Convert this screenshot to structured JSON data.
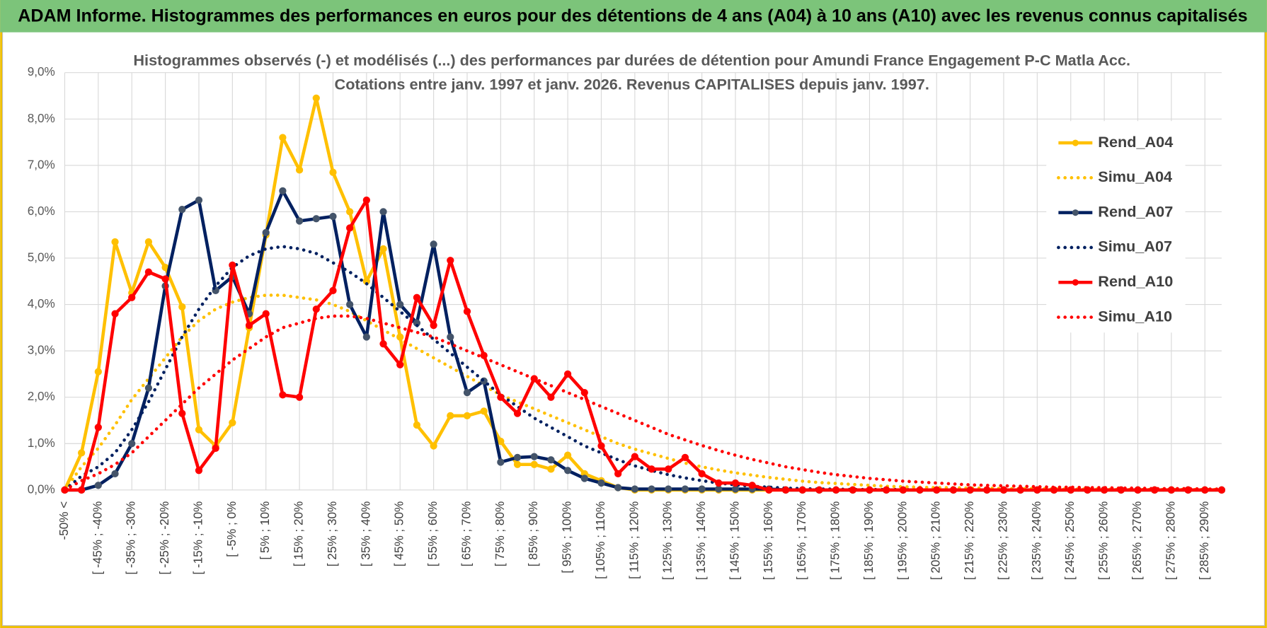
{
  "header": {
    "title": "ADAM Informe. Histogrammes des performances en euros pour des détentions de 4 ans (A04) à 10 ans (A10) avec les revenus connus capitalisés"
  },
  "chart_data": {
    "type": "line",
    "title": "Histogrammes observés (-) et modélisés (...) des performances par durées de détention pour Amundi France Engagement P-C Matla Acc.",
    "subtitle": "Cotations entre janv. 1997 et janv. 2026. Revenus CAPITALISES depuis janv. 1997.",
    "categories": [
      "-50% <",
      null,
      "[ -45% ; -40%",
      null,
      "[ -35% ; -30%",
      null,
      "[ -25% ; -20%",
      null,
      "[ -15% ; -10%",
      null,
      "[ -5% ; 0%",
      null,
      "[ 5% ; 10%",
      null,
      "[ 15% ; 20%",
      null,
      "[ 25% ; 30%",
      null,
      "[ 35% ; 40%",
      null,
      "[ 45% ; 50%",
      null,
      "[ 55% ; 60%",
      null,
      "[ 65% ; 70%",
      null,
      "[ 75% ; 80%",
      null,
      "[ 85% ; 90%",
      null,
      "[ 95% ; 100%",
      null,
      "[ 105% ; 110%",
      null,
      "[ 115% ; 120%",
      null,
      "[ 125% ; 130%",
      null,
      "[ 135% ; 140%",
      null,
      "[ 145% ; 150%",
      null,
      "[ 155% ; 160%",
      null,
      "[ 165% ; 170%",
      null,
      "[ 175% ; 180%",
      null,
      "[ 185% ; 190%",
      null,
      "[ 195% ; 200%",
      null,
      "[ 205% ; 210%",
      null,
      "[ 215% ; 220%",
      null,
      "[ 225% ; 230%",
      null,
      "[ 235% ; 240%",
      null,
      "[ 245% ; 250%",
      null,
      "[ 255% ; 260%",
      null,
      "[ 265% ; 270%",
      null,
      "[ 275% ; 280%",
      null,
      "[ 285% ; 290%",
      null
    ],
    "series": [
      {
        "name": "Rend_A04",
        "color": "#FFC000",
        "style": "solid",
        "markers": true,
        "values": [
          0,
          0.8,
          2.55,
          5.35,
          4.25,
          5.35,
          4.8,
          3.95,
          1.3,
          0.95,
          1.45,
          3.5,
          5.5,
          7.6,
          6.9,
          8.45,
          6.85,
          6.0,
          4.5,
          5.2,
          3.3,
          1.4,
          0.95,
          1.6,
          1.6,
          1.7,
          1.05,
          0.55,
          0.55,
          0.45,
          0.75,
          0.35,
          0.2,
          0.05,
          0,
          0,
          0,
          0,
          0,
          0,
          0,
          0,
          0,
          0,
          0,
          0,
          0,
          0,
          0,
          0,
          0,
          0,
          0,
          0,
          0,
          0,
          0,
          0,
          0,
          0,
          0,
          0,
          0,
          0,
          0,
          0,
          0,
          0,
          0,
          0
        ]
      },
      {
        "name": "Simu_A04",
        "color": "#FFC000",
        "style": "dotted",
        "markers": false,
        "values": [
          0,
          0.5,
          0.9,
          1.4,
          1.95,
          2.4,
          2.85,
          3.3,
          3.65,
          3.9,
          4.05,
          4.15,
          4.2,
          4.2,
          4.15,
          4.1,
          4.0,
          3.85,
          3.65,
          3.45,
          3.25,
          3.05,
          2.85,
          2.65,
          2.45,
          2.25,
          2.05,
          1.9,
          1.75,
          1.6,
          1.45,
          1.3,
          1.15,
          1.0,
          0.88,
          0.78,
          0.68,
          0.58,
          0.5,
          0.43,
          0.37,
          0.32,
          0.27,
          0.23,
          0.19,
          0.16,
          0.14,
          0.12,
          0.1,
          0.08,
          0.07,
          0.06,
          0.05,
          0.05,
          0.04,
          0.04,
          0.03,
          0.03,
          0.03,
          0.02,
          0.02,
          0.02,
          0.02,
          0.01,
          0.01,
          0.01,
          0.01,
          0.01,
          0.01,
          0.01
        ]
      },
      {
        "name": "Rend_A07",
        "color": "#002060",
        "marker_color": "#44546A",
        "style": "solid",
        "markers": true,
        "values": [
          0,
          0,
          0.1,
          0.35,
          1.0,
          2.2,
          4.4,
          6.05,
          6.25,
          4.3,
          4.6,
          3.8,
          5.55,
          6.45,
          5.8,
          5.85,
          5.9,
          4.0,
          3.3,
          6.0,
          4.0,
          3.6,
          5.3,
          3.3,
          2.1,
          2.35,
          0.6,
          0.7,
          0.72,
          0.65,
          0.42,
          0.25,
          0.15,
          0.05,
          0.02,
          0.02,
          0.02,
          0.02,
          0.02,
          0.02,
          0.02,
          0.02,
          0.02,
          0,
          0,
          0,
          0,
          0,
          0,
          0,
          0,
          0,
          0,
          0,
          0,
          0,
          0,
          0,
          0,
          0,
          0,
          0,
          0,
          0,
          0,
          0,
          0,
          0,
          0,
          0
        ]
      },
      {
        "name": "Simu_A07",
        "color": "#002060",
        "style": "dotted",
        "markers": false,
        "values": [
          0,
          0.3,
          0.5,
          0.8,
          1.3,
          1.9,
          2.6,
          3.3,
          3.9,
          4.4,
          4.8,
          5.05,
          5.2,
          5.25,
          5.2,
          5.1,
          4.9,
          4.7,
          4.45,
          4.15,
          3.85,
          3.55,
          3.25,
          2.95,
          2.65,
          2.35,
          2.05,
          1.8,
          1.55,
          1.35,
          1.15,
          0.95,
          0.8,
          0.65,
          0.52,
          0.42,
          0.33,
          0.26,
          0.2,
          0.15,
          0.11,
          0.08,
          0.06,
          0.04,
          0.03,
          0.02,
          0.02,
          0.01,
          0.01,
          0.01,
          0.01,
          0,
          0,
          0,
          0,
          0,
          0,
          0,
          0,
          0,
          0,
          0,
          0,
          0,
          0,
          0,
          0,
          0,
          0,
          0
        ]
      },
      {
        "name": "Rend_A10",
        "color": "#FF0000",
        "style": "solid",
        "markers": true,
        "values": [
          0,
          0,
          1.35,
          3.8,
          4.15,
          4.7,
          4.55,
          1.65,
          0.42,
          0.9,
          4.85,
          3.55,
          3.8,
          2.05,
          2.0,
          3.9,
          4.3,
          5.65,
          6.25,
          3.15,
          2.7,
          4.15,
          3.55,
          4.95,
          3.85,
          2.9,
          2.0,
          1.65,
          2.4,
          2.0,
          2.5,
          2.1,
          0.95,
          0.35,
          0.72,
          0.45,
          0.45,
          0.7,
          0.35,
          0.15,
          0.15,
          0.1,
          0,
          0,
          0,
          0,
          0,
          0,
          0,
          0,
          0,
          0,
          0,
          0,
          0,
          0,
          0,
          0,
          0,
          0,
          0,
          0,
          0,
          0,
          0,
          0,
          0,
          0,
          0,
          0
        ]
      },
      {
        "name": "Simu_A10",
        "color": "#FF0000",
        "style": "dotted",
        "markers": false,
        "values": [
          0,
          0.2,
          0.35,
          0.55,
          0.8,
          1.15,
          1.5,
          1.85,
          2.2,
          2.5,
          2.8,
          3.05,
          3.3,
          3.5,
          3.6,
          3.7,
          3.75,
          3.75,
          3.7,
          3.6,
          3.5,
          3.4,
          3.3,
          3.15,
          3.0,
          2.85,
          2.7,
          2.55,
          2.4,
          2.25,
          2.1,
          1.95,
          1.8,
          1.65,
          1.5,
          1.35,
          1.2,
          1.08,
          0.96,
          0.85,
          0.75,
          0.66,
          0.58,
          0.5,
          0.44,
          0.38,
          0.33,
          0.29,
          0.25,
          0.22,
          0.19,
          0.17,
          0.15,
          0.13,
          0.11,
          0.1,
          0.09,
          0.08,
          0.07,
          0.06,
          0.06,
          0.05,
          0.05,
          0.04,
          0.04,
          0.03,
          0.03,
          0.03,
          0.02,
          0.02
        ]
      }
    ],
    "ylim": [
      0,
      9
    ],
    "yticks": [
      {
        "value": 0,
        "label": "0,0%"
      },
      {
        "value": 1,
        "label": "1,0%"
      },
      {
        "value": 2,
        "label": "2,0%"
      },
      {
        "value": 3,
        "label": "3,0%"
      },
      {
        "value": 4,
        "label": "4,0%"
      },
      {
        "value": 5,
        "label": "5,0%"
      },
      {
        "value": 6,
        "label": "6,0%"
      },
      {
        "value": 7,
        "label": "7,0%"
      },
      {
        "value": 8,
        "label": "8,0%"
      },
      {
        "value": 9,
        "label": "9,0%"
      }
    ],
    "grid": true,
    "legend": "right"
  }
}
